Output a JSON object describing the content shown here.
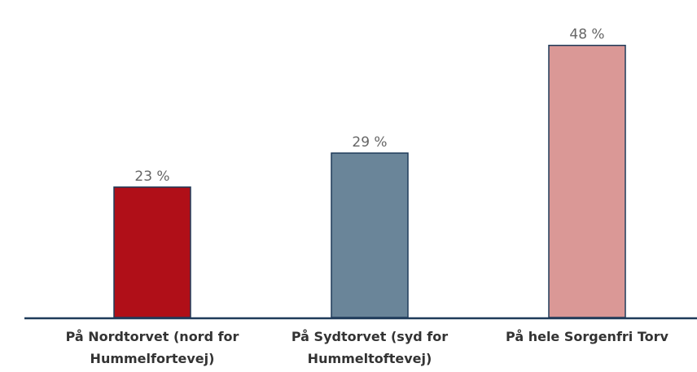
{
  "chart_data": {
    "type": "bar",
    "categories": [
      "På Nordtorvet (nord for Hummelfortevej)",
      "På Sydtorvet (syd for Hummeltoftevej)",
      "På hele Sorgenfri Torv"
    ],
    "values": [
      23,
      29,
      48
    ],
    "value_labels": [
      "23 %",
      "29 %",
      "48 %"
    ],
    "colors": [
      "#b00f18",
      "#6a8599",
      "#da9896"
    ],
    "ylim": [
      0,
      55
    ]
  }
}
